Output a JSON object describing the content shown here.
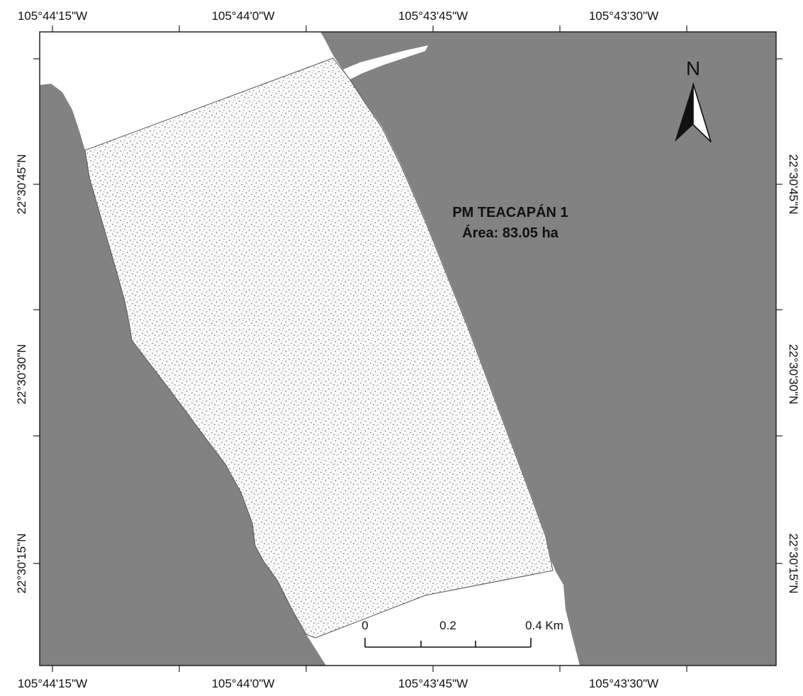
{
  "map": {
    "title_line1": "PM TEACAPÁN 1",
    "title_line2": "Área: 83.05 ha",
    "north_label": "N",
    "colors": {
      "land": "#828282",
      "water": "#ffffff",
      "study_area_fill": "#fafafa",
      "stipple": "#5a5a5a",
      "frame": "#222222"
    },
    "icons": {
      "north_arrow": "north-arrow-icon"
    }
  },
  "coordinates": {
    "top_longitudes": [
      "105°44'15\"W",
      "105°44'0\"W",
      "105°43'45\"W",
      "105°43'30\"W"
    ],
    "bottom_longitudes": [
      "105°44'15\"W",
      "105°44'0\"W",
      "105°43'45\"W",
      "105°43'30\"W"
    ],
    "left_latitudes": [
      "22°30'45\"N",
      "22°30'30\"N",
      "22°30'15\"N"
    ],
    "right_latitudes": [
      "22°30'45\"N",
      "22°30'30\"N",
      "22°30'15\"N"
    ]
  },
  "scale_bar": {
    "labels": [
      "0",
      "0.2",
      "0.4 Km"
    ]
  }
}
